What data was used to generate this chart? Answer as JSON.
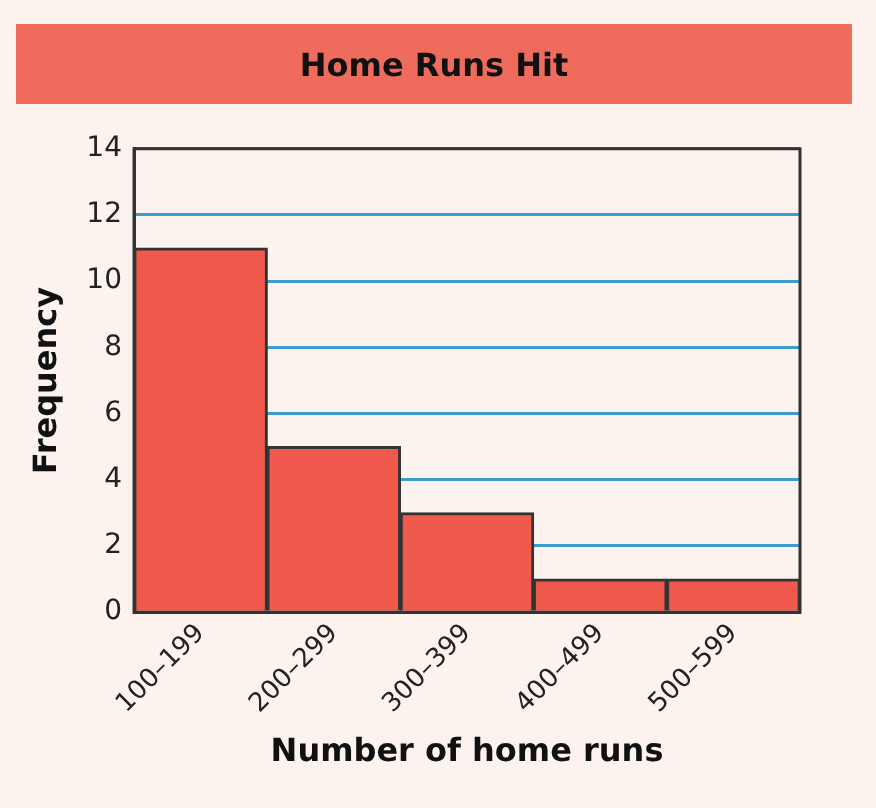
{
  "chart_data": {
    "type": "bar",
    "title": "Home Runs Hit",
    "xlabel": "Number of home runs",
    "ylabel": "Frequency",
    "categories": [
      "100–199",
      "200–299",
      "300–399",
      "400–499",
      "500–599"
    ],
    "values": [
      11,
      5,
      3,
      1,
      1
    ],
    "color": "#ef5a4c",
    "ylim": [
      0,
      14
    ],
    "yticks": [
      0,
      2,
      4,
      6,
      8,
      10,
      12,
      14
    ],
    "grid": "y"
  }
}
